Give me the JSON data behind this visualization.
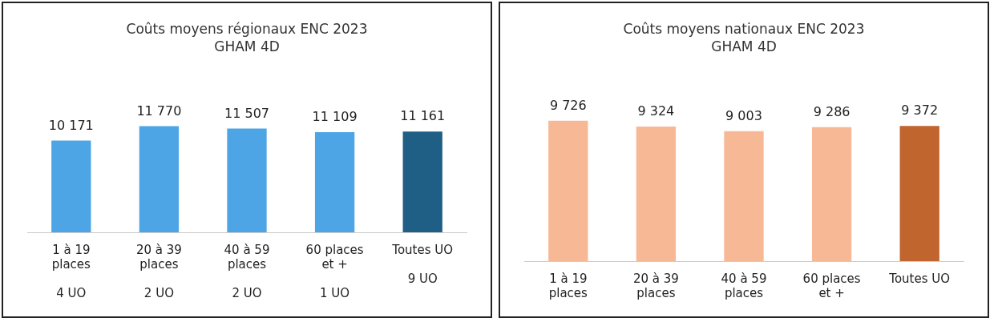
{
  "chart_data": [
    {
      "type": "bar",
      "title": "Coûts moyens régionaux ENC 2023",
      "subtitle": "GHAM 4D",
      "categories": [
        "1 à 19 places\n4 UO",
        "20 à 39 places\n2  UO",
        "40 à 59 places\n2 UO",
        "60 places et +\n1 UO",
        "Toutes UO\n9 UO"
      ],
      "values": [
        10171,
        11770,
        11507,
        11109,
        11161
      ],
      "colors": [
        "#4ea5e6",
        "#4ea5e6",
        "#4ea5e6",
        "#4ea5e6",
        "#1f5f86"
      ],
      "value_labels": [
        "10 171",
        "11 770",
        "11 507",
        "11 109",
        "11 161"
      ],
      "grid": false,
      "legend": false,
      "tick_labels": "x"
    },
    {
      "type": "bar",
      "title": "Coûts moyens nationaux ENC 2023",
      "subtitle": "GHAM 4D",
      "categories": [
        "1 à 19 places",
        "20 à 39 places",
        "40 à 59 places",
        "60 places et +",
        "Toutes UO"
      ],
      "values": [
        9726,
        9324,
        9003,
        9286,
        9372
      ],
      "colors": [
        "#f7b896",
        "#f7b896",
        "#f7b896",
        "#f7b896",
        "#c0652e"
      ],
      "value_labels": [
        "9 726",
        "9 324",
        "9 003",
        "9 286",
        "9 372"
      ],
      "grid": false,
      "legend": false,
      "tick_labels": "x"
    }
  ]
}
